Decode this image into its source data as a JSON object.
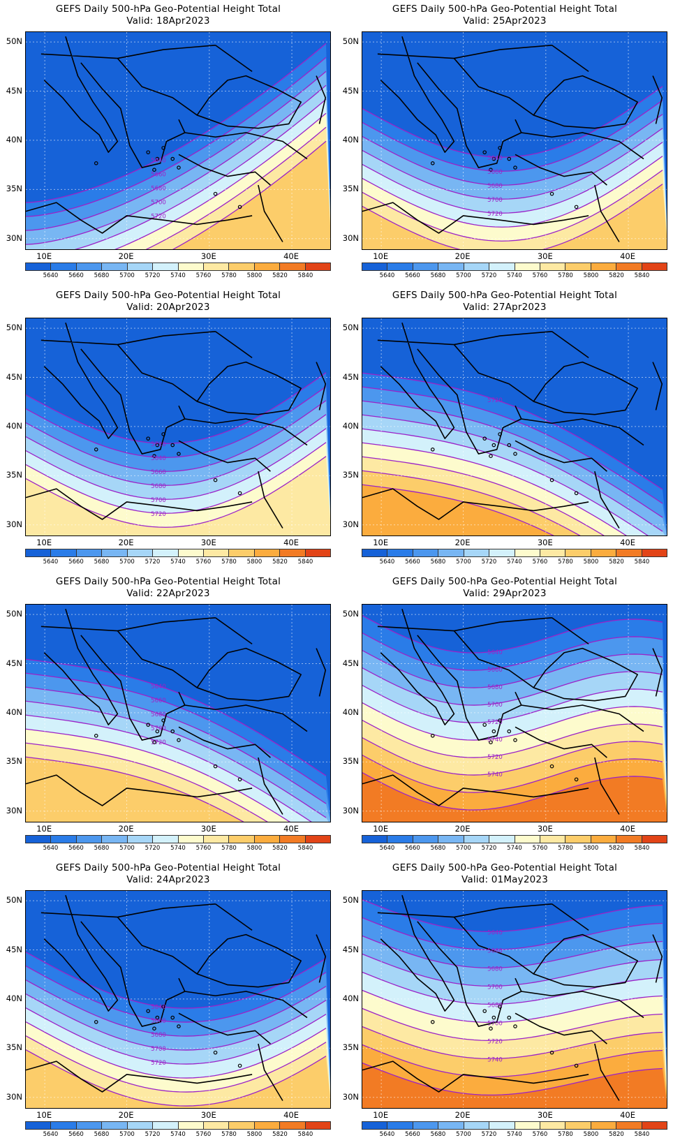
{
  "palette": [
    "#1662d8",
    "#2a7ce8",
    "#4c97ee",
    "#78b6f3",
    "#a6d6f7",
    "#d3f1fb",
    "#fdfbcd",
    "#fde9a3",
    "#fccd6a",
    "#fbac3e",
    "#f27b24",
    "#e24417",
    "#c21e10",
    "#8c0b06"
  ],
  "colorbar_labels": [
    "5640",
    "5660",
    "5680",
    "5700",
    "5720",
    "5740",
    "5760",
    "5780",
    "5800",
    "5820",
    "5840"
  ],
  "axes": {
    "lat_ticks": [
      "50N",
      "45N",
      "40N",
      "35N",
      "30N"
    ],
    "lon_ticks": [
      "10E",
      "20E",
      "30E",
      "40E"
    ]
  },
  "panels": [
    {
      "title": "GEFS Daily 500-hPa Geo-Potential Height Total",
      "valid": "Valid: 18Apr2023",
      "chart_data": {
        "type": "map",
        "valid_date": "18Apr2023",
        "variable": "500-hPa geopotential height",
        "contour_labels": [
          "5640",
          "5660",
          "5680",
          "5700",
          "5720"
        ]
      }
    },
    {
      "title": "GEFS Daily 500-hPa Geo-Potential Height Total",
      "valid": "Valid: 25Apr2023",
      "chart_data": {
        "type": "map",
        "valid_date": "25Apr2023",
        "variable": "500-hPa geopotential height",
        "contour_labels": [
          "5640",
          "5660",
          "5680",
          "5700",
          "5720"
        ]
      }
    },
    {
      "title": "GEFS Daily 500-hPa Geo-Potential Height Total",
      "valid": "Valid: 20Apr2023",
      "chart_data": {
        "type": "map",
        "valid_date": "20Apr2023",
        "variable": "500-hPa geopotential height",
        "contour_labels": [
          "5720",
          "5640",
          "5660",
          "5680",
          "5700",
          "5720"
        ]
      }
    },
    {
      "title": "GEFS Daily 500-hPa Geo-Potential Height Total",
      "valid": "Valid: 27Apr2023",
      "chart_data": {
        "type": "map",
        "valid_date": "27Apr2023",
        "variable": "500-hPa geopotential height",
        "contour_labels": [
          "5720"
        ]
      }
    },
    {
      "title": "GEFS Daily 500-hPa Geo-Potential Height Total",
      "valid": "Valid: 22Apr2023",
      "chart_data": {
        "type": "map",
        "valid_date": "22Apr2023",
        "variable": "500-hPa geopotential height",
        "contour_labels": [
          "5640",
          "5660",
          "5680",
          "5700",
          "5720"
        ]
      }
    },
    {
      "title": "GEFS Daily 500-hPa Geo-Potential Height Total",
      "valid": "Valid: 29Apr2023",
      "chart_data": {
        "type": "map",
        "valid_date": "29Apr2023",
        "variable": "500-hPa geopotential height",
        "contour_labels": [
          "5640",
          "5660",
          "5680",
          "5700",
          "5720",
          "5740",
          "5720",
          "5740"
        ]
      }
    },
    {
      "title": "GEFS Daily 500-hPa Geo-Potential Height Total",
      "valid": "Valid: 24Apr2023",
      "chart_data": {
        "type": "map",
        "valid_date": "24Apr2023",
        "variable": "500-hPa geopotential height",
        "contour_labels": [
          "5640",
          "5660",
          "5680",
          "5700",
          "5720"
        ]
      }
    },
    {
      "title": "GEFS Daily 500-hPa Geo-Potential Height Total",
      "valid": "Valid: 01May2023",
      "chart_data": {
        "type": "map",
        "valid_date": "01May2023",
        "variable": "500-hPa geopotential height",
        "contour_labels": [
          "5640",
          "5660",
          "5680",
          "5700",
          "5680",
          "5700",
          "5720",
          "5740"
        ]
      }
    }
  ]
}
